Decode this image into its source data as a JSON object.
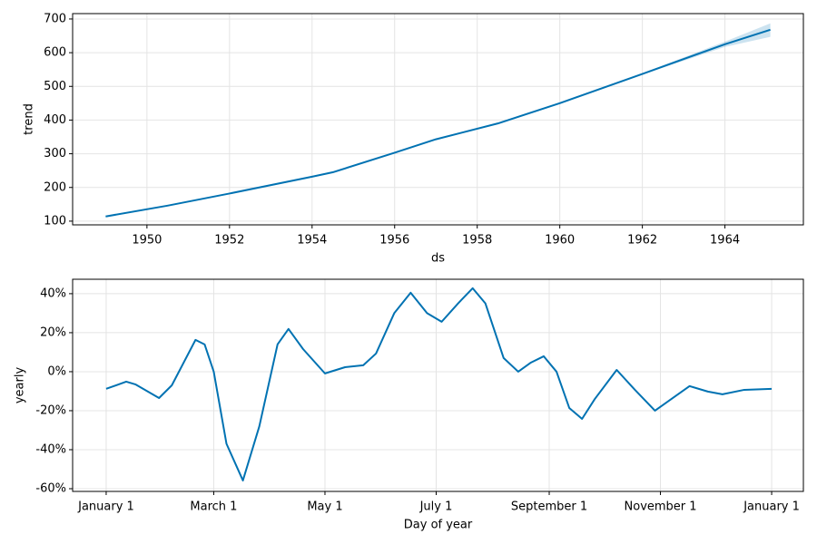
{
  "chart_data": [
    {
      "type": "line",
      "xlabel": "ds",
      "ylabel": "trend",
      "color": "#0072B2",
      "band_color": "#0072B2",
      "grid": true,
      "x": [
        1949.0,
        1950.5,
        1952.0,
        1954.0,
        1954.5,
        1956.0,
        1957.0,
        1958.5,
        1960.0,
        1962.0,
        1964.0,
        1965.1
      ],
      "values": [
        114,
        146,
        182,
        232,
        245,
        303,
        343,
        390,
        450,
        537,
        625,
        668
      ],
      "lower": [
        114,
        146,
        182,
        232,
        245,
        303,
        343,
        390,
        450,
        535,
        617,
        647
      ],
      "upper": [
        114,
        146,
        182,
        232,
        245,
        303,
        343,
        390,
        450,
        539,
        633,
        687
      ],
      "xlim": [
        1948.2,
        1965.9
      ],
      "ylim": [
        89,
        716
      ],
      "xticks": [
        1950,
        1952,
        1954,
        1956,
        1958,
        1960,
        1962,
        1964
      ],
      "yticks": [
        100,
        200,
        300,
        400,
        500,
        600,
        700
      ]
    },
    {
      "type": "line",
      "xlabel": "Day of year",
      "ylabel": "yearly",
      "color": "#0072B2",
      "grid": true,
      "x": [
        0,
        11,
        16,
        29,
        36,
        49,
        54,
        59,
        66,
        75,
        84,
        94,
        100,
        108,
        120,
        131,
        141,
        148,
        158,
        167,
        176,
        184,
        193,
        201,
        208,
        218,
        226,
        233,
        240,
        247,
        254,
        261,
        268,
        280,
        290,
        301,
        310,
        320,
        330,
        338,
        350,
        365
      ],
      "values": [
        -8.8,
        -5.1,
        -6.5,
        -13.5,
        -7,
        16.3,
        14,
        0,
        -37,
        -55.8,
        -28,
        14,
        21.9,
        11.6,
        -0.9,
        2.3,
        3.3,
        9.3,
        30,
        40.5,
        30,
        25.6,
        35,
        42.8,
        35,
        7,
        0,
        4.7,
        7.9,
        0,
        -18.6,
        -24.2,
        -14,
        0.9,
        -9.3,
        -20,
        -14,
        -7.4,
        -10.2,
        -11.6,
        -9.3,
        -8.8
      ],
      "xlim": [
        -18.4,
        382.4
      ],
      "ylim": [
        -61.4,
        47.4
      ],
      "xticks": [
        {
          "value": 0,
          "label": "January 1"
        },
        {
          "value": 59,
          "label": "March 1"
        },
        {
          "value": 120,
          "label": "May 1"
        },
        {
          "value": 181,
          "label": "July 1"
        },
        {
          "value": 243,
          "label": "September 1"
        },
        {
          "value": 304,
          "label": "November 1"
        },
        {
          "value": 365,
          "label": "January 1"
        }
      ],
      "yticks": [
        {
          "value": -60,
          "label": "-60%"
        },
        {
          "value": -40,
          "label": "-40%"
        },
        {
          "value": -20,
          "label": "-20%"
        },
        {
          "value": 0,
          "label": "0%"
        },
        {
          "value": 20,
          "label": "20%"
        },
        {
          "value": 40,
          "label": "40%"
        }
      ]
    }
  ]
}
